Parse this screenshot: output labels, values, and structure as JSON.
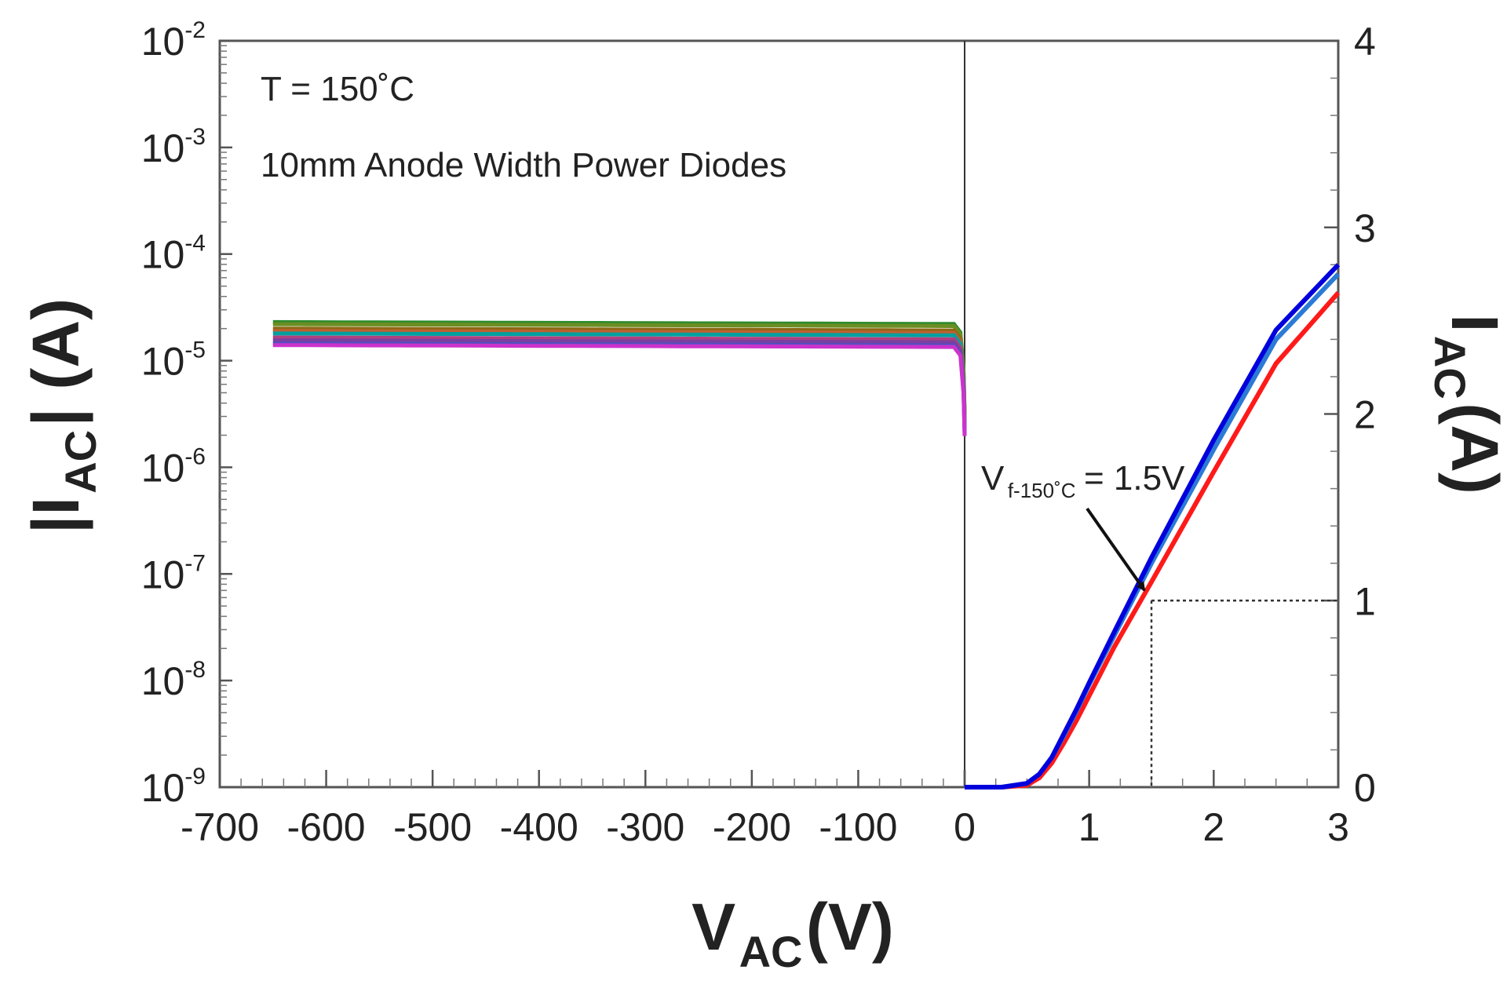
{
  "chart_data": {
    "type": "line",
    "title": "",
    "annotations": {
      "temperature": "T = 150˚C",
      "device": "10mm Anode Width Power Diodes",
      "vf_main": "V",
      "vf_sub": "f-150˚C",
      "vf_value": "= 1.5V"
    },
    "xlabel": {
      "main": "V",
      "sub": "AC",
      "unit": " (V)"
    },
    "ylabel_left": {
      "prefix": "|I",
      "sub": "AC",
      "suffix": "| (A)"
    },
    "ylabel_right": {
      "main": "I",
      "sub": "AC",
      "unit": " (A)"
    },
    "left_panel": {
      "xlim": [
        -700,
        0
      ],
      "ylog_exp_range": [
        -9,
        -2
      ],
      "x_tick_labels": [
        "-700",
        "-600",
        "-500",
        "-400",
        "-300",
        "-200",
        "-100",
        "0"
      ],
      "x_ticks": [
        -700,
        -600,
        -500,
        -400,
        -300,
        -200,
        -100,
        0
      ],
      "y_tick_labels": [
        {
          "base": "10",
          "exp": "-2",
          "value": -2
        },
        {
          "base": "10",
          "exp": "-3",
          "value": -3
        },
        {
          "base": "10",
          "exp": "-4",
          "value": -4
        },
        {
          "base": "10",
          "exp": "-5",
          "value": -5
        },
        {
          "base": "10",
          "exp": "-6",
          "value": -6
        },
        {
          "base": "10",
          "exp": "-7",
          "value": -7
        },
        {
          "base": "10",
          "exp": "-8",
          "value": -8
        },
        {
          "base": "10",
          "exp": "-9",
          "value": -9
        }
      ],
      "x_range": [
        -650,
        -10
      ],
      "series": [
        {
          "color": "#2e8b2e",
          "level": 2.3e-05
        },
        {
          "color": "#6b8e23",
          "level": 2.2e-05
        },
        {
          "color": "#8b6914",
          "level": 2e-05
        },
        {
          "color": "#c06030",
          "level": 1.9e-05
        },
        {
          "color": "#00a0a0",
          "level": 1.8e-05
        },
        {
          "color": "#b04080",
          "level": 1.65e-05
        },
        {
          "color": "#7b3fa0",
          "level": 1.55e-05
        },
        {
          "color": "#5050c0",
          "level": 1.45e-05
        },
        {
          "color": "#cc33cc",
          "level": 1.4e-05
        }
      ]
    },
    "right_panel": {
      "xlim": [
        0,
        3
      ],
      "ylim": [
        0,
        4
      ],
      "x_tick_labels": [
        "0",
        "1",
        "2",
        "3"
      ],
      "x_ticks": [
        0,
        1,
        2,
        3
      ],
      "y_tick_labels": [
        "0",
        "1",
        "2",
        "3",
        "4"
      ],
      "y_ticks": [
        0,
        1,
        2,
        3,
        4
      ],
      "marker": {
        "vf": 1.5,
        "current": 1.0
      },
      "series": [
        {
          "color": "#ff1a1a",
          "points": [
            [
              0,
              0
            ],
            [
              0.3,
              0
            ],
            [
              0.5,
              0.01
            ],
            [
              0.6,
              0.05
            ],
            [
              0.7,
              0.13
            ],
            [
              0.8,
              0.24
            ],
            [
              0.9,
              0.36
            ],
            [
              1.0,
              0.49
            ],
            [
              1.2,
              0.75
            ],
            [
              1.5,
              1.1
            ],
            [
              2.0,
              1.69
            ],
            [
              2.5,
              2.27
            ],
            [
              3.0,
              2.65
            ]
          ]
        },
        {
          "color": "#2b7bd6",
          "points": [
            [
              0,
              0
            ],
            [
              0.3,
              0
            ],
            [
              0.5,
              0.02
            ],
            [
              0.6,
              0.07
            ],
            [
              0.7,
              0.16
            ],
            [
              0.8,
              0.28
            ],
            [
              0.9,
              0.41
            ],
            [
              1.0,
              0.55
            ],
            [
              1.2,
              0.81
            ],
            [
              1.5,
              1.2
            ],
            [
              2.0,
              1.81
            ],
            [
              2.5,
              2.4
            ],
            [
              3.0,
              2.75
            ]
          ]
        },
        {
          "color": "#0000dd",
          "points": [
            [
              0,
              0
            ],
            [
              0.3,
              0
            ],
            [
              0.5,
              0.02
            ],
            [
              0.6,
              0.07
            ],
            [
              0.7,
              0.16
            ],
            [
              0.8,
              0.29
            ],
            [
              0.9,
              0.42
            ],
            [
              1.0,
              0.56
            ],
            [
              1.2,
              0.83
            ],
            [
              1.5,
              1.23
            ],
            [
              2.0,
              1.86
            ],
            [
              2.5,
              2.45
            ],
            [
              3.0,
              2.8
            ]
          ]
        }
      ]
    }
  }
}
